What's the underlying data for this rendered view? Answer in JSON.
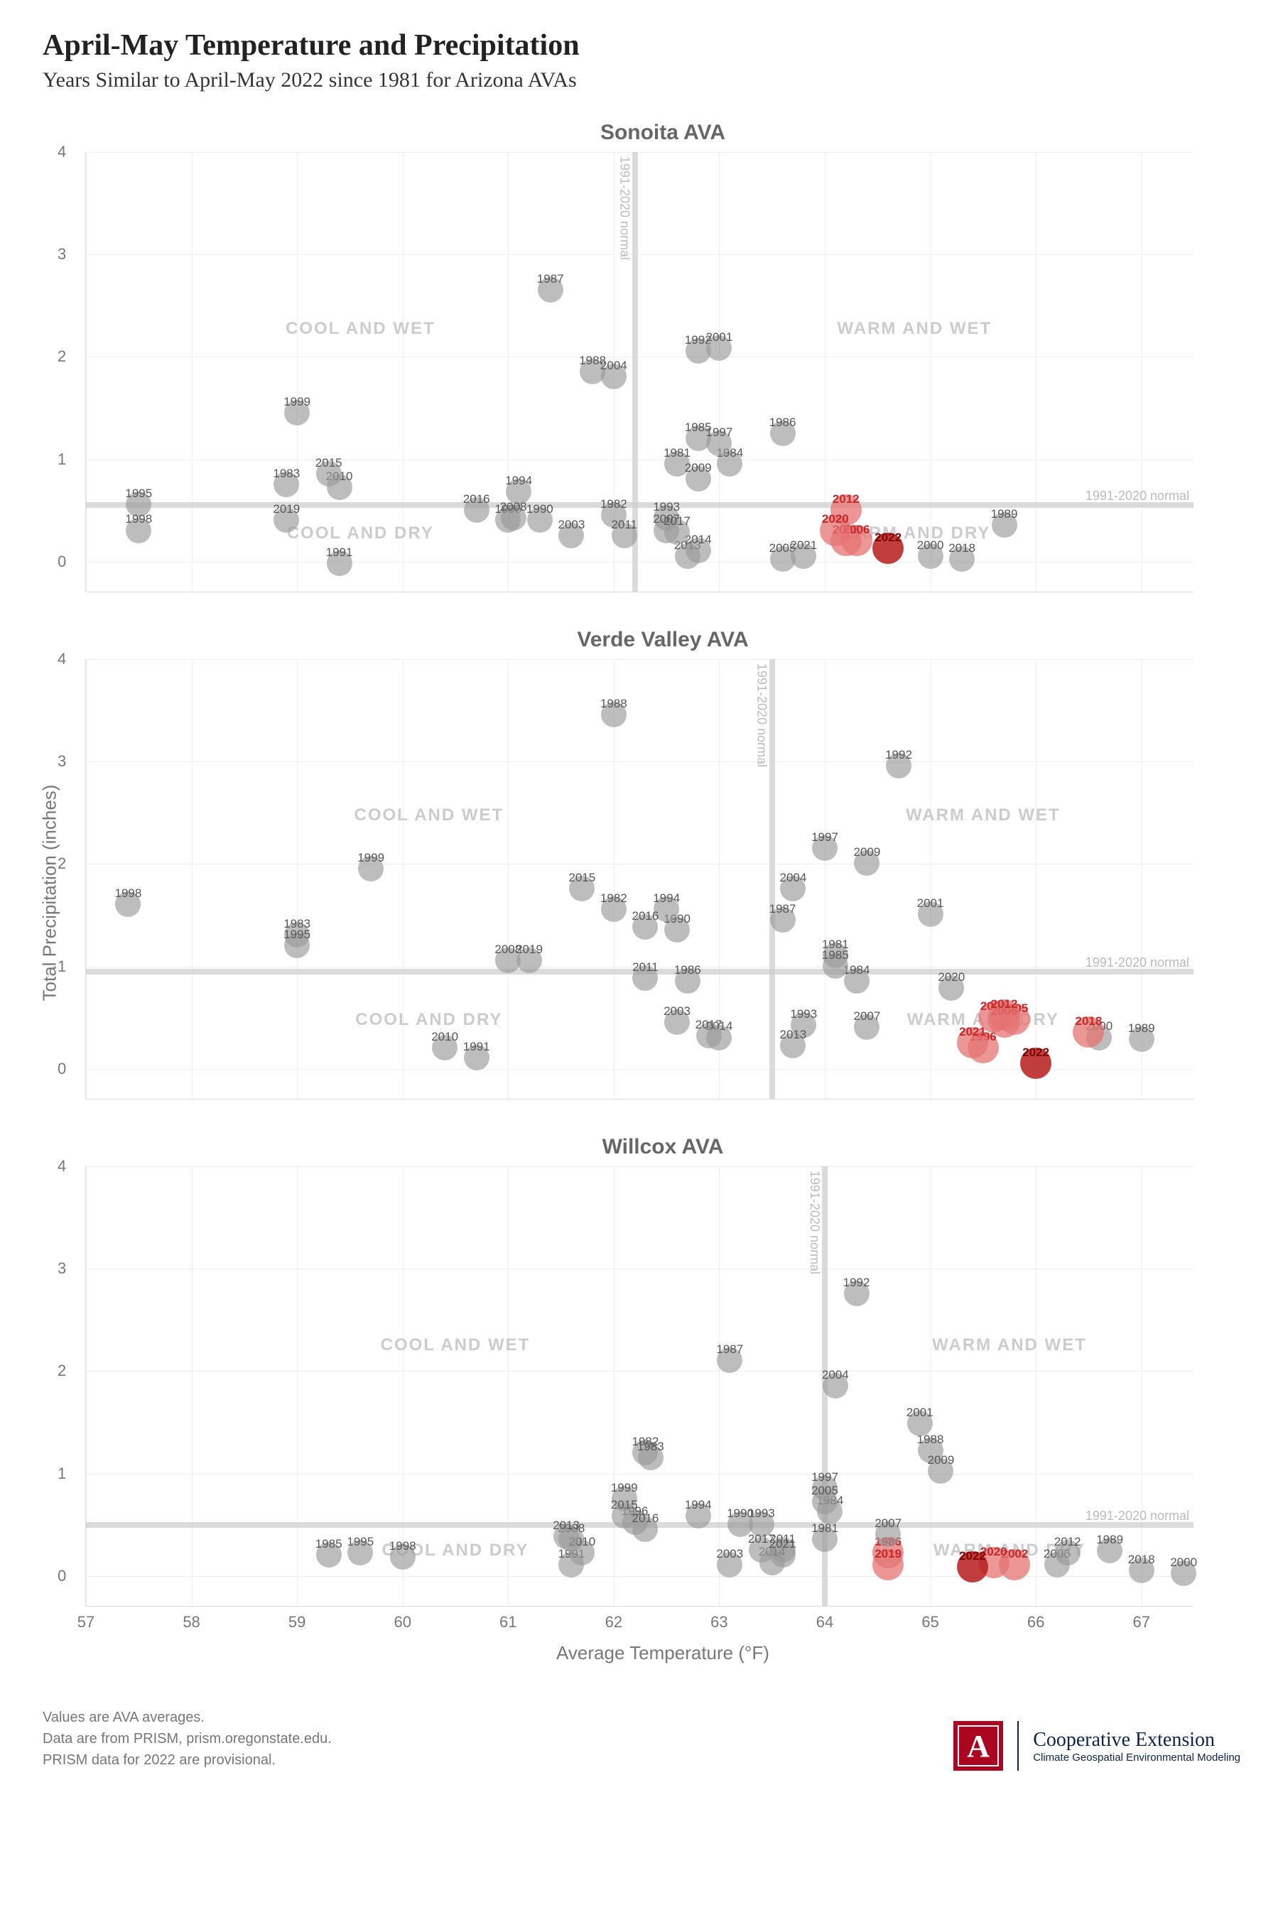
{
  "title": "April-May Temperature and Precipitation",
  "subtitle": "Years Similar to April-May 2022 since 1981 for Arizona AVAs",
  "ylabel": "Total Precipitation (inches)",
  "xlabel": "Average Temperature (°F)",
  "xlim": [
    57,
    67.5
  ],
  "ylim": [
    -0.3,
    4
  ],
  "xtick_step": 1,
  "ytick_step": 1,
  "grid_color": "#eeeeee",
  "normal_label": "1991-2020 normal",
  "quadrant_labels": {
    "tl": "COOL AND WET",
    "tr": "WARM AND WET",
    "bl": "COOL AND DRY",
    "br": "WARM AND DRY"
  },
  "point_style": {
    "normal": {
      "fill": "#999999",
      "opacity": 0.65,
      "r": 18,
      "label_color": "#555555",
      "label_weight": "normal"
    },
    "similar": {
      "fill": "#e57373",
      "opacity": 0.75,
      "r": 22,
      "label_color": "#c62828",
      "label_weight": "bold"
    },
    "target": {
      "fill": "#b71c1c",
      "opacity": 0.85,
      "r": 22,
      "label_color": "#7f0000",
      "label_weight": "bold"
    }
  },
  "charts": [
    {
      "title": "Sonoita AVA",
      "normal_x": 62.2,
      "normal_y": 0.55,
      "show_xticks": false,
      "points": [
        {
          "year": 1981,
          "x": 62.6,
          "y": 0.95,
          "k": "normal"
        },
        {
          "year": 1982,
          "x": 62.0,
          "y": 0.45,
          "k": "normal"
        },
        {
          "year": 1983,
          "x": 58.9,
          "y": 0.75,
          "k": "normal"
        },
        {
          "year": 1984,
          "x": 63.1,
          "y": 0.95,
          "k": "normal"
        },
        {
          "year": 1985,
          "x": 62.8,
          "y": 1.2,
          "k": "normal"
        },
        {
          "year": 1986,
          "x": 63.6,
          "y": 1.25,
          "k": "normal"
        },
        {
          "year": 1987,
          "x": 61.4,
          "y": 2.65,
          "k": "normal"
        },
        {
          "year": 1988,
          "x": 61.8,
          "y": 1.85,
          "k": "normal"
        },
        {
          "year": 1989,
          "x": 65.7,
          "y": 0.35,
          "k": "normal"
        },
        {
          "year": 1990,
          "x": 61.3,
          "y": 0.4,
          "k": "normal"
        },
        {
          "year": 1991,
          "x": 59.4,
          "y": -0.02,
          "k": "normal"
        },
        {
          "year": 1992,
          "x": 62.8,
          "y": 2.05,
          "k": "normal"
        },
        {
          "year": 1993,
          "x": 62.5,
          "y": 0.42,
          "k": "normal"
        },
        {
          "year": 1994,
          "x": 61.1,
          "y": 0.68,
          "k": "normal"
        },
        {
          "year": 1995,
          "x": 57.5,
          "y": 0.55,
          "k": "normal"
        },
        {
          "year": 1996,
          "x": 61.0,
          "y": 0.4,
          "k": "normal"
        },
        {
          "year": 1997,
          "x": 63.0,
          "y": 1.15,
          "k": "normal"
        },
        {
          "year": 1998,
          "x": 57.5,
          "y": 0.3,
          "k": "normal"
        },
        {
          "year": 1999,
          "x": 59.0,
          "y": 1.45,
          "k": "normal"
        },
        {
          "year": 2000,
          "x": 65.0,
          "y": 0.05,
          "k": "normal"
        },
        {
          "year": 2001,
          "x": 63.0,
          "y": 2.08,
          "k": "normal"
        },
        {
          "year": 2002,
          "x": 64.2,
          "y": 0.2,
          "k": "similar"
        },
        {
          "year": 2003,
          "x": 61.6,
          "y": 0.25,
          "k": "normal"
        },
        {
          "year": 2004,
          "x": 62.0,
          "y": 1.8,
          "k": "normal"
        },
        {
          "year": 2005,
          "x": 63.6,
          "y": 0.02,
          "k": "normal"
        },
        {
          "year": 2006,
          "x": 64.3,
          "y": 0.2,
          "k": "similar"
        },
        {
          "year": 2007,
          "x": 62.5,
          "y": 0.3,
          "k": "normal"
        },
        {
          "year": 2008,
          "x": 61.05,
          "y": 0.42,
          "k": "normal"
        },
        {
          "year": 2009,
          "x": 62.8,
          "y": 0.8,
          "k": "normal"
        },
        {
          "year": 2010,
          "x": 59.4,
          "y": 0.72,
          "k": "normal"
        },
        {
          "year": 2011,
          "x": 62.1,
          "y": 0.25,
          "k": "normal"
        },
        {
          "year": 2012,
          "x": 64.2,
          "y": 0.5,
          "k": "similar"
        },
        {
          "year": 2013,
          "x": 62.7,
          "y": 0.05,
          "k": "normal"
        },
        {
          "year": 2014,
          "x": 62.8,
          "y": 0.1,
          "k": "normal"
        },
        {
          "year": 2015,
          "x": 59.3,
          "y": 0.85,
          "k": "normal"
        },
        {
          "year": 2016,
          "x": 60.7,
          "y": 0.5,
          "k": "normal"
        },
        {
          "year": 2017,
          "x": 62.6,
          "y": 0.28,
          "k": "normal"
        },
        {
          "year": 2018,
          "x": 65.3,
          "y": 0.02,
          "k": "normal"
        },
        {
          "year": 2019,
          "x": 58.9,
          "y": 0.4,
          "k": "normal"
        },
        {
          "year": 2020,
          "x": 64.1,
          "y": 0.3,
          "k": "similar"
        },
        {
          "year": 2021,
          "x": 63.8,
          "y": 0.05,
          "k": "normal"
        },
        {
          "year": 2022,
          "x": 64.6,
          "y": 0.12,
          "k": "target"
        }
      ]
    },
    {
      "title": "Verde Valley AVA",
      "normal_x": 63.5,
      "normal_y": 0.95,
      "show_xticks": false,
      "points": [
        {
          "year": 1981,
          "x": 64.1,
          "y": 1.1,
          "k": "normal"
        },
        {
          "year": 1982,
          "x": 62.0,
          "y": 1.55,
          "k": "normal"
        },
        {
          "year": 1983,
          "x": 59.0,
          "y": 1.3,
          "k": "normal"
        },
        {
          "year": 1984,
          "x": 64.3,
          "y": 0.85,
          "k": "normal"
        },
        {
          "year": 1985,
          "x": 64.1,
          "y": 1.0,
          "k": "normal"
        },
        {
          "year": 1986,
          "x": 62.7,
          "y": 0.85,
          "k": "normal"
        },
        {
          "year": 1987,
          "x": 63.6,
          "y": 1.45,
          "k": "normal"
        },
        {
          "year": 1988,
          "x": 62.0,
          "y": 3.45,
          "k": "normal"
        },
        {
          "year": 1989,
          "x": 67.0,
          "y": 0.28,
          "k": "normal"
        },
        {
          "year": 1990,
          "x": 62.6,
          "y": 1.35,
          "k": "normal"
        },
        {
          "year": 1991,
          "x": 60.7,
          "y": 0.1,
          "k": "normal"
        },
        {
          "year": 1992,
          "x": 64.7,
          "y": 2.95,
          "k": "normal"
        },
        {
          "year": 1993,
          "x": 63.8,
          "y": 0.42,
          "k": "normal"
        },
        {
          "year": 1994,
          "x": 62.5,
          "y": 1.55,
          "k": "normal"
        },
        {
          "year": 1995,
          "x": 59.0,
          "y": 1.2,
          "k": "normal"
        },
        {
          "year": 1996,
          "x": 65.5,
          "y": 0.2,
          "k": "similar"
        },
        {
          "year": 1997,
          "x": 64.0,
          "y": 2.15,
          "k": "normal"
        },
        {
          "year": 1998,
          "x": 57.4,
          "y": 1.6,
          "k": "normal"
        },
        {
          "year": 1999,
          "x": 59.7,
          "y": 1.95,
          "k": "normal"
        },
        {
          "year": 2000,
          "x": 66.6,
          "y": 0.3,
          "k": "normal"
        },
        {
          "year": 2001,
          "x": 65.0,
          "y": 1.5,
          "k": "normal"
        },
        {
          "year": 2002,
          "x": 65.6,
          "y": 0.5,
          "k": "similar"
        },
        {
          "year": 2003,
          "x": 62.6,
          "y": 0.45,
          "k": "normal"
        },
        {
          "year": 2004,
          "x": 63.7,
          "y": 1.75,
          "k": "normal"
        },
        {
          "year": 2005,
          "x": 65.8,
          "y": 0.48,
          "k": "similar"
        },
        {
          "year": 2006,
          "x": 65.7,
          "y": 0.45,
          "k": "similar"
        },
        {
          "year": 2007,
          "x": 64.4,
          "y": 0.4,
          "k": "normal"
        },
        {
          "year": 2008,
          "x": 61.0,
          "y": 1.05,
          "k": "normal"
        },
        {
          "year": 2009,
          "x": 64.4,
          "y": 2.0,
          "k": "normal"
        },
        {
          "year": 2010,
          "x": 60.4,
          "y": 0.2,
          "k": "normal"
        },
        {
          "year": 2011,
          "x": 62.3,
          "y": 0.88,
          "k": "normal"
        },
        {
          "year": 2012,
          "x": 65.7,
          "y": 0.52,
          "k": "similar"
        },
        {
          "year": 2013,
          "x": 63.7,
          "y": 0.22,
          "k": "normal"
        },
        {
          "year": 2014,
          "x": 63.0,
          "y": 0.3,
          "k": "normal"
        },
        {
          "year": 2015,
          "x": 61.7,
          "y": 1.75,
          "k": "normal"
        },
        {
          "year": 2016,
          "x": 62.3,
          "y": 1.38,
          "k": "normal"
        },
        {
          "year": 2017,
          "x": 62.9,
          "y": 0.32,
          "k": "normal"
        },
        {
          "year": 2018,
          "x": 66.5,
          "y": 0.35,
          "k": "similar"
        },
        {
          "year": 2019,
          "x": 61.2,
          "y": 1.05,
          "k": "normal"
        },
        {
          "year": 2020,
          "x": 65.2,
          "y": 0.78,
          "k": "normal"
        },
        {
          "year": 2021,
          "x": 65.4,
          "y": 0.25,
          "k": "similar"
        },
        {
          "year": 2022,
          "x": 66.0,
          "y": 0.05,
          "k": "target"
        }
      ]
    },
    {
      "title": "Willcox AVA",
      "normal_x": 64.0,
      "normal_y": 0.5,
      "show_xticks": true,
      "points": [
        {
          "year": 1981,
          "x": 64.0,
          "y": 0.35,
          "k": "normal"
        },
        {
          "year": 1982,
          "x": 62.3,
          "y": 1.2,
          "k": "normal"
        },
        {
          "year": 1983,
          "x": 62.35,
          "y": 1.15,
          "k": "normal"
        },
        {
          "year": 1984,
          "x": 64.05,
          "y": 0.62,
          "k": "normal"
        },
        {
          "year": 1985,
          "x": 59.3,
          "y": 0.2,
          "k": "normal"
        },
        {
          "year": 1986,
          "x": 64.6,
          "y": 0.22,
          "k": "similar"
        },
        {
          "year": 1987,
          "x": 63.1,
          "y": 2.1,
          "k": "normal"
        },
        {
          "year": 1988,
          "x": 65.0,
          "y": 1.22,
          "k": "normal"
        },
        {
          "year": 1989,
          "x": 66.7,
          "y": 0.24,
          "k": "normal"
        },
        {
          "year": 1990,
          "x": 63.2,
          "y": 0.5,
          "k": "normal"
        },
        {
          "year": 1991,
          "x": 61.6,
          "y": 0.1,
          "k": "normal"
        },
        {
          "year": 1992,
          "x": 64.3,
          "y": 2.75,
          "k": "normal"
        },
        {
          "year": 1993,
          "x": 63.4,
          "y": 0.5,
          "k": "normal"
        },
        {
          "year": 1994,
          "x": 62.8,
          "y": 0.58,
          "k": "normal"
        },
        {
          "year": 1995,
          "x": 59.6,
          "y": 0.22,
          "k": "normal"
        },
        {
          "year": 1996,
          "x": 62.2,
          "y": 0.52,
          "k": "normal"
        },
        {
          "year": 1997,
          "x": 64.0,
          "y": 0.85,
          "k": "normal"
        },
        {
          "year": 1998,
          "x": 60.0,
          "y": 0.18,
          "k": "normal"
        },
        {
          "year": 1999,
          "x": 62.1,
          "y": 0.75,
          "k": "normal"
        },
        {
          "year": 2000,
          "x": 67.4,
          "y": 0.02,
          "k": "normal"
        },
        {
          "year": 2001,
          "x": 64.9,
          "y": 1.48,
          "k": "normal"
        },
        {
          "year": 2002,
          "x": 65.8,
          "y": 0.1,
          "k": "similar"
        },
        {
          "year": 2003,
          "x": 63.1,
          "y": 0.1,
          "k": "normal"
        },
        {
          "year": 2004,
          "x": 64.1,
          "y": 1.85,
          "k": "normal"
        },
        {
          "year": 2005,
          "x": 64.0,
          "y": 0.72,
          "k": "normal"
        },
        {
          "year": 2006,
          "x": 66.2,
          "y": 0.1,
          "k": "normal"
        },
        {
          "year": 2007,
          "x": 64.6,
          "y": 0.4,
          "k": "normal"
        },
        {
          "year": 2008,
          "x": 61.6,
          "y": 0.35,
          "k": "normal"
        },
        {
          "year": 2009,
          "x": 65.1,
          "y": 1.02,
          "k": "normal"
        },
        {
          "year": 2010,
          "x": 61.7,
          "y": 0.22,
          "k": "normal"
        },
        {
          "year": 2011,
          "x": 63.6,
          "y": 0.25,
          "k": "normal"
        },
        {
          "year": 2012,
          "x": 66.3,
          "y": 0.22,
          "k": "normal"
        },
        {
          "year": 2013,
          "x": 61.55,
          "y": 0.38,
          "k": "normal"
        },
        {
          "year": 2014,
          "x": 63.5,
          "y": 0.12,
          "k": "normal"
        },
        {
          "year": 2015,
          "x": 62.1,
          "y": 0.58,
          "k": "normal"
        },
        {
          "year": 2016,
          "x": 62.3,
          "y": 0.45,
          "k": "normal"
        },
        {
          "year": 2017,
          "x": 63.4,
          "y": 0.25,
          "k": "normal"
        },
        {
          "year": 2018,
          "x": 67.0,
          "y": 0.05,
          "k": "normal"
        },
        {
          "year": 2019,
          "x": 64.6,
          "y": 0.1,
          "k": "similar"
        },
        {
          "year": 2020,
          "x": 65.6,
          "y": 0.12,
          "k": "similar"
        },
        {
          "year": 2021,
          "x": 63.6,
          "y": 0.2,
          "k": "normal"
        },
        {
          "year": 2022,
          "x": 65.4,
          "y": 0.08,
          "k": "target"
        }
      ]
    }
  ],
  "footnotes": [
    "Values are AVA averages.",
    "Data are from PRISM, prism.oregonstate.edu.",
    "PRISM data for 2022 are provisional."
  ],
  "logo": {
    "letter": "A",
    "line1": "Cooperative Extension",
    "line2": "Climate Geospatial Environmental Modeling"
  }
}
